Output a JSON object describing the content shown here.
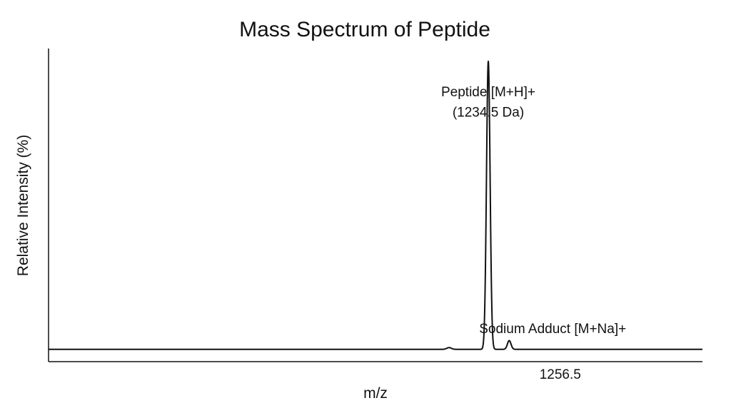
{
  "chart_data": {
    "type": "line",
    "title": "Mass Spectrum of Peptide",
    "xlabel": "m/z",
    "ylabel": "Relative Intensity (%)",
    "xlim": [
      1100,
      1300
    ],
    "ylim": [
      0,
      100
    ],
    "x_ticks": [
      1256.5
    ],
    "x_tick_labels": [
      "1256.5"
    ],
    "grid": false,
    "line_color": "#111111",
    "baseline": 0.8,
    "peaks": [
      {
        "x": 1222.5,
        "height": 0.6,
        "width": 0.7
      },
      {
        "x": 1234.5,
        "height": 99.2,
        "width": 0.55
      },
      {
        "x": 1240.9,
        "height": 3.0,
        "width": 0.55
      }
    ],
    "annotations": [
      {
        "text": "Peptide [M+H]+",
        "x": 1234.5,
        "y": 88
      },
      {
        "text": "(1234.5 Da)",
        "x": 1234.5,
        "y": 81
      },
      {
        "text": "Sodium Adduct [M+Na]+",
        "x": 1254.2,
        "y": 6.4
      }
    ]
  }
}
